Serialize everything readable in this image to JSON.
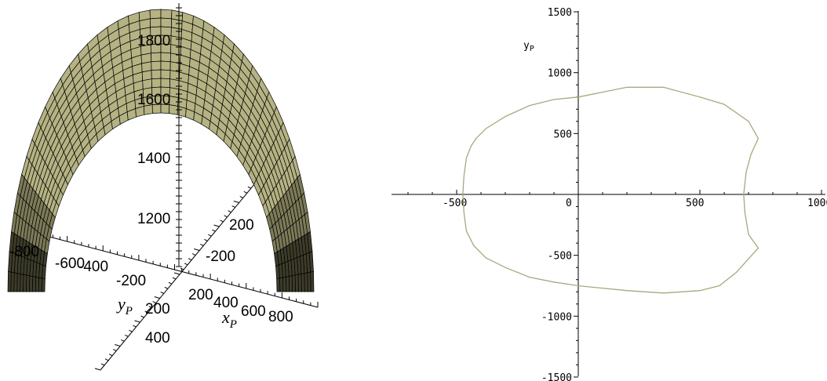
{
  "chart_data": [
    {
      "type": "surface3d",
      "axis_labels": {
        "x": "x",
        "x_sub": "P",
        "y": "y",
        "y_sub": "P"
      },
      "z_ticks": [
        "1200",
        "1400",
        "1600",
        "1800"
      ],
      "x_ticks": [
        "200",
        "400",
        "600",
        "800"
      ],
      "y_ticks": [
        "-600",
        "-400",
        "-200",
        "200",
        "400"
      ],
      "y_ticks_far": [
        "-800",
        "-200",
        "200"
      ],
      "colors": {
        "surface": "#b5b283",
        "mesh": "#000000",
        "axes": "#000000"
      },
      "shape": "dome-shaped arch surface with grid mesh"
    },
    {
      "type": "line",
      "ylabel": "y",
      "ylabel_sub": "P",
      "xlim": [
        -600,
        1000
      ],
      "ylim": [
        -1500,
        1500
      ],
      "x_ticks": [
        "-500",
        "0",
        "500",
        "1000"
      ],
      "y_ticks": [
        "1500",
        "1000",
        "500",
        "-500",
        "-1000",
        "-1500"
      ],
      "colors": {
        "curve": "#aaa67e",
        "axes": "#000000"
      },
      "series": [
        {
          "points": [
            [
              740,
              460
            ],
            [
              700,
              600
            ],
            [
              600,
              740
            ],
            [
              500,
              800
            ],
            [
              350,
              880
            ],
            [
              200,
              880
            ],
            [
              0,
              800
            ],
            [
              -100,
              780
            ],
            [
              -200,
              730
            ],
            [
              -300,
              640
            ],
            [
              -380,
              540
            ],
            [
              -420,
              460
            ],
            [
              -440,
              400
            ],
            [
              -460,
              300
            ],
            [
              -470,
              150
            ],
            [
              -475,
              0
            ],
            [
              -470,
              -150
            ],
            [
              -460,
              -300
            ],
            [
              -430,
              -420
            ],
            [
              -380,
              -520
            ],
            [
              -300,
              -600
            ],
            [
              -200,
              -680
            ],
            [
              -100,
              -720
            ],
            [
              0,
              -750
            ],
            [
              200,
              -790
            ],
            [
              350,
              -810
            ],
            [
              500,
              -790
            ],
            [
              580,
              -750
            ],
            [
              650,
              -640
            ],
            [
              740,
              -440
            ],
            [
              700,
              -330
            ],
            [
              685,
              -150
            ],
            [
              680,
              0
            ],
            [
              690,
              180
            ],
            [
              710,
              330
            ],
            [
              740,
              460
            ]
          ]
        }
      ]
    }
  ]
}
